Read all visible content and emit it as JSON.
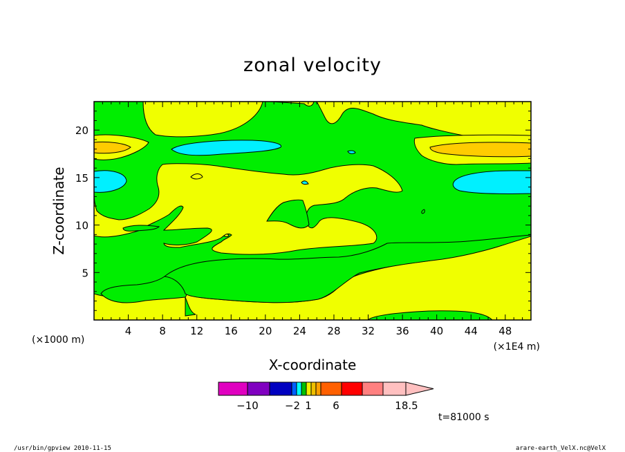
{
  "chart_data": {
    "type": "heatmap",
    "title": "zonal velocity",
    "xlabel": "X-coordinate",
    "ylabel": "Z-coordinate",
    "x_unit_left": "(×1000 m)",
    "x_unit_right": "(×1E4 m)",
    "x_ticks": [
      "4",
      "8",
      "12",
      "16",
      "20",
      "24",
      "28",
      "32",
      "36",
      "40",
      "44",
      "48"
    ],
    "x_tick_values": [
      4,
      8,
      12,
      16,
      20,
      24,
      28,
      32,
      36,
      40,
      44,
      48
    ],
    "y_ticks": [
      "5",
      "10",
      "15",
      "20"
    ],
    "y_tick_values": [
      5,
      10,
      15,
      20
    ],
    "xlim": [
      0,
      51
    ],
    "ylim": [
      0,
      23
    ],
    "colorbar": {
      "colors": [
        "#e000c0",
        "#8000c0",
        "#0000c0",
        "#0060ff",
        "#00ffff",
        "#00c000",
        "#f0f000",
        "#f0c000",
        "#ffa000",
        "#ff6000",
        "#ff0000",
        "#ff8080",
        "#ffc0c0"
      ],
      "tick_labels": [
        "−10",
        "−2",
        "1",
        "6",
        "18.5"
      ]
    },
    "time_label": "t=81000 s",
    "fill_colors": {
      "background_green": "#00ee00",
      "yellow": "#f0ff00",
      "cyan": "#00f0ff",
      "orange": "#ffcc00"
    }
  },
  "footer": {
    "left": "/usr/bin/gpview  2010-11-15",
    "right": "arare-earth_VelX.nc@VelX"
  }
}
